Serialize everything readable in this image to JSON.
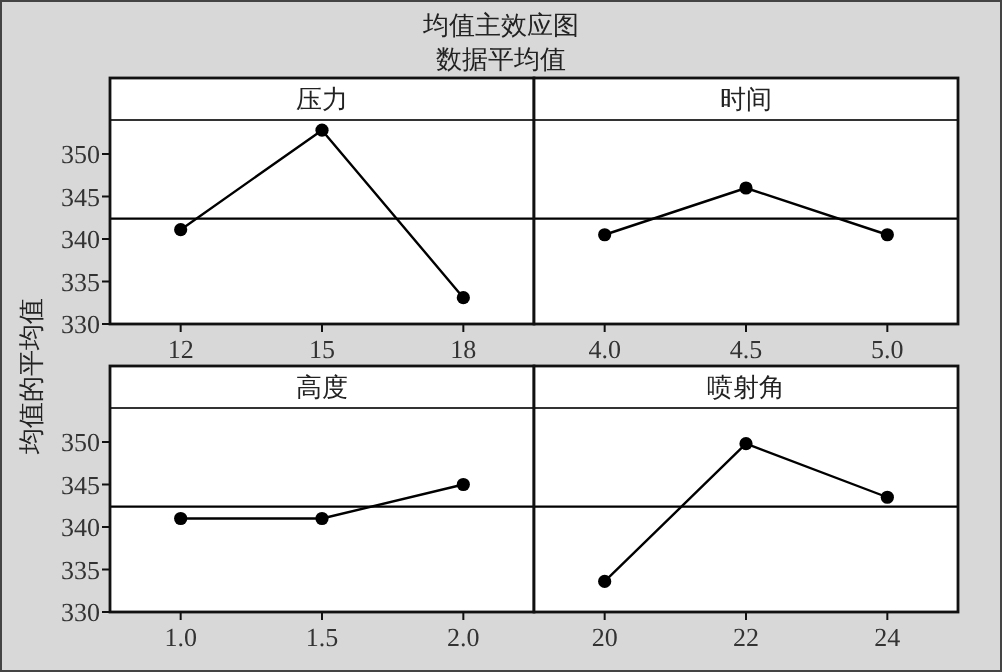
{
  "chart_data": [
    {
      "type": "other",
      "title": "均值主效应图",
      "subtitle": "数据平均值"
    },
    {
      "type": "line",
      "title": "压力",
      "ylabel": "均值的平均值",
      "categories": [
        "12",
        "15",
        "18"
      ],
      "series": [
        {
          "color": "#000000",
          "values": [
            341.1,
            352.8,
            333.1
          ]
        }
      ],
      "ylim": [
        330,
        354
      ],
      "yticks": [
        330,
        335,
        340,
        345,
        350
      ],
      "ref_lines": [
        {
          "axis": "y",
          "value": 342.4,
          "color": "#000000"
        }
      ],
      "marker": "circle",
      "grid": false
    },
    {
      "type": "line",
      "title": "时间",
      "categories": [
        "4.0",
        "4.5",
        "5.0"
      ],
      "series": [
        {
          "color": "#000000",
          "values": [
            340.5,
            346.0,
            340.5
          ]
        }
      ],
      "ylim": [
        330,
        354
      ],
      "ref_lines": [
        {
          "axis": "y",
          "value": 342.4,
          "color": "#000000"
        }
      ],
      "marker": "circle",
      "grid": false,
      "tick_labels": "x"
    },
    {
      "type": "line",
      "title": "高度",
      "categories": [
        "1.0",
        "1.5",
        "2.0"
      ],
      "series": [
        {
          "color": "#000000",
          "values": [
            341.0,
            341.0,
            345.0
          ]
        }
      ],
      "ylim": [
        330,
        354
      ],
      "yticks": [
        330,
        335,
        340,
        345,
        350
      ],
      "ref_lines": [
        {
          "axis": "y",
          "value": 342.4,
          "color": "#000000"
        }
      ],
      "marker": "circle",
      "grid": false
    },
    {
      "type": "line",
      "title": "喷射角",
      "categories": [
        "20",
        "22",
        "24"
      ],
      "series": [
        {
          "color": "#000000",
          "values": [
            333.6,
            349.8,
            343.5
          ]
        }
      ],
      "ylim": [
        330,
        354
      ],
      "ref_lines": [
        {
          "axis": "y",
          "value": 342.4,
          "color": "#000000"
        }
      ],
      "marker": "circle",
      "grid": false,
      "tick_labels": "x"
    }
  ]
}
